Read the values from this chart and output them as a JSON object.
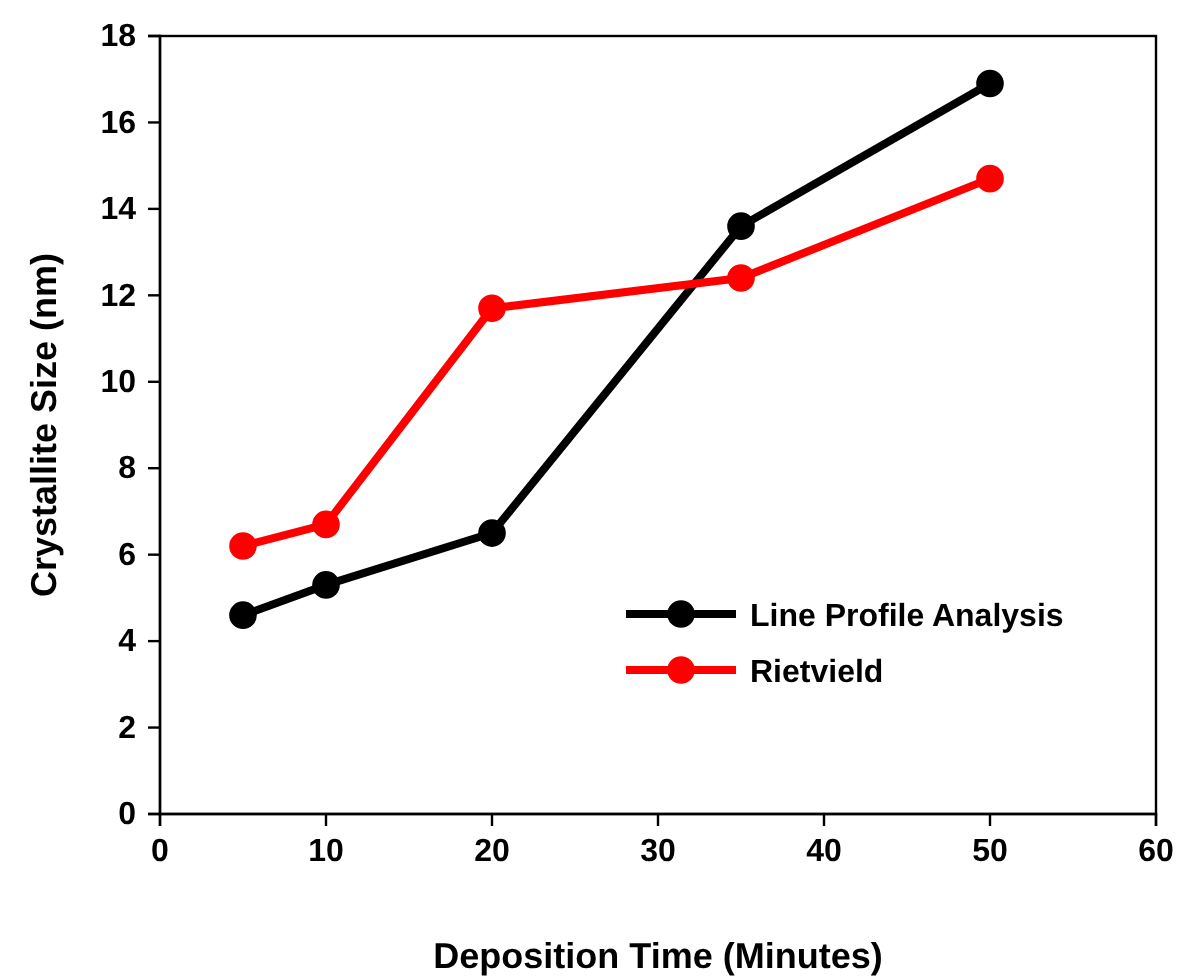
{
  "chart_data": {
    "type": "line",
    "xlabel": "Deposition Time (Minutes)",
    "ylabel": "Crystallite Size (nm)",
    "x": [
      5,
      10,
      20,
      35,
      50
    ],
    "series": [
      {
        "name": "Line Profile Analysis",
        "color": "#000000",
        "values": [
          4.6,
          5.3,
          6.5,
          13.6,
          16.9
        ]
      },
      {
        "name": "Rietvield",
        "color": "#ff0000",
        "values": [
          6.2,
          6.7,
          11.7,
          12.4,
          14.7
        ]
      }
    ],
    "xlim": [
      0,
      60
    ],
    "xticks": [
      0,
      10,
      20,
      30,
      40,
      50,
      60
    ],
    "ylim": [
      0,
      18
    ],
    "yticks": [
      0,
      2,
      4,
      6,
      8,
      10,
      12,
      14,
      16,
      18
    ],
    "grid": false,
    "legend": "bottom right",
    "marker": "circle",
    "line_style": "solid"
  }
}
